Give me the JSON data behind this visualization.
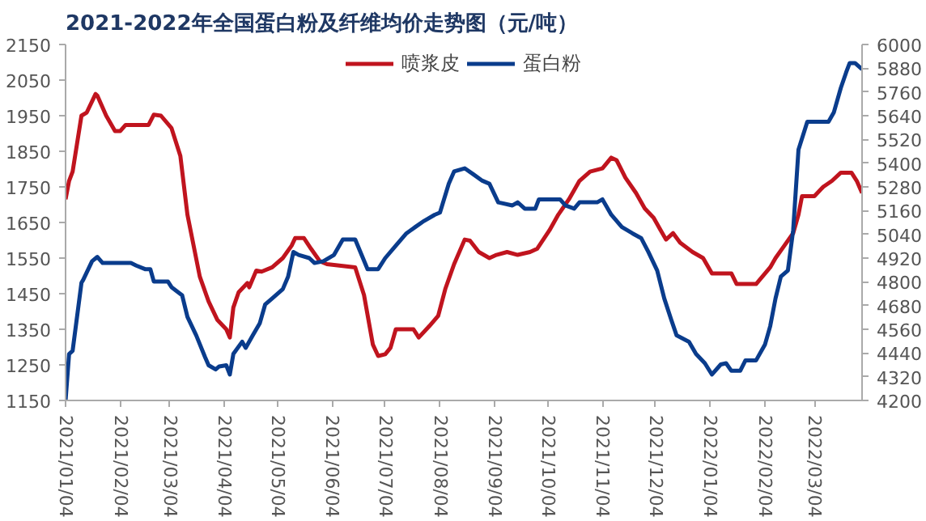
{
  "chart_data": {
    "type": "line",
    "title": "2021-2022年全国蛋白粉及纤维均价走势图（元/吨）",
    "xlim": [
      "2021-01-04",
      "2022-03-31"
    ],
    "xticks": [
      {
        "value": "2021-01-04",
        "label": "2021/01/04"
      },
      {
        "value": "2021-02-04",
        "label": "2021/02/04"
      },
      {
        "value": "2021-03-04",
        "label": "2021/03/04"
      },
      {
        "value": "2021-04-04",
        "label": "2021/04/04"
      },
      {
        "value": "2021-05-04",
        "label": "2021/05/04"
      },
      {
        "value": "2021-06-04",
        "label": "2021/06/04"
      },
      {
        "value": "2021-07-04",
        "label": "2021/07/04"
      },
      {
        "value": "2021-08-04",
        "label": "2021/08/04"
      },
      {
        "value": "2021-09-04",
        "label": "2021/09/04"
      },
      {
        "value": "2021-10-04",
        "label": "2021/10/04"
      },
      {
        "value": "2021-11-04",
        "label": "2021/11/04"
      },
      {
        "value": "2021-12-04",
        "label": "2021/12/04"
      },
      {
        "value": "2022-01-04",
        "label": "2022/01/04"
      },
      {
        "value": "2022-02-04",
        "label": "2022/02/04"
      },
      {
        "value": "2022-03-04",
        "label": "2022/03/04"
      }
    ],
    "ylim": [
      1150,
      2150
    ],
    "yticks": [
      1150,
      1250,
      1350,
      1450,
      1550,
      1650,
      1750,
      1850,
      1950,
      2050,
      2150
    ],
    "y2lim": [
      4200,
      6000
    ],
    "y2ticks": [
      4200,
      4320,
      4440,
      4560,
      4680,
      4800,
      4920,
      5040,
      5160,
      5280,
      5400,
      5520,
      5640,
      5760,
      5880,
      6000
    ],
    "grid": false,
    "legend": "top",
    "series": [
      {
        "name": "喷浆皮",
        "color": "#c0141e",
        "x": [
          "2021-01-04",
          "2021-01-06",
          "2021-01-08",
          "2021-01-13",
          "2021-01-16",
          "2021-01-21",
          "2021-01-22",
          "2021-01-27",
          "2021-02-01",
          "2021-02-04",
          "2021-02-07",
          "2021-02-20",
          "2021-02-23",
          "2021-02-27",
          "2021-03-05",
          "2021-03-10",
          "2021-03-14",
          "2021-03-21",
          "2021-03-26",
          "2021-03-31",
          "2021-04-05",
          "2021-04-07",
          "2021-04-09",
          "2021-04-12",
          "2021-04-17",
          "2021-04-18",
          "2021-04-22",
          "2021-04-25",
          "2021-05-01",
          "2021-05-07",
          "2021-05-12",
          "2021-05-14",
          "2021-05-19",
          "2021-05-23",
          "2021-05-28",
          "2021-06-01",
          "2021-06-17",
          "2021-06-22",
          "2021-06-27",
          "2021-06-30",
          "2021-07-04",
          "2021-07-07",
          "2021-07-10",
          "2021-07-20",
          "2021-07-23",
          "2021-07-29",
          "2021-08-03",
          "2021-08-07",
          "2021-08-12",
          "2021-08-18",
          "2021-08-21",
          "2021-08-26",
          "2021-09-01",
          "2021-09-05",
          "2021-09-11",
          "2021-09-17",
          "2021-09-24",
          "2021-09-28",
          "2021-10-05",
          "2021-10-10",
          "2021-10-16",
          "2021-10-22",
          "2021-10-28",
          "2021-11-04",
          "2021-11-09",
          "2021-11-12",
          "2021-11-17",
          "2021-11-23",
          "2021-11-28",
          "2021-12-03",
          "2021-12-07",
          "2021-12-10",
          "2021-12-14",
          "2021-12-18",
          "2021-12-25",
          "2021-12-31",
          "2022-01-05",
          "2022-01-16",
          "2022-01-19",
          "2022-01-30",
          "2022-02-07",
          "2022-02-10",
          "2022-02-15",
          "2022-02-20",
          "2022-02-23",
          "2022-02-25",
          "2022-03-04",
          "2022-03-09",
          "2022-03-14",
          "2022-03-19",
          "2022-03-25",
          "2022-03-28",
          "2022-03-31"
        ],
        "values": [
          1715,
          1767,
          1793,
          1950,
          1959,
          2011,
          2006,
          1950,
          1907,
          1907,
          1924,
          1924,
          1953,
          1950,
          1915,
          1837,
          1672,
          1498,
          1428,
          1376,
          1350,
          1327,
          1411,
          1454,
          1480,
          1468,
          1515,
          1512,
          1524,
          1550,
          1585,
          1606,
          1606,
          1576,
          1541,
          1533,
          1524,
          1446,
          1307,
          1275,
          1280,
          1298,
          1350,
          1350,
          1327,
          1359,
          1388,
          1463,
          1533,
          1602,
          1599,
          1567,
          1550,
          1559,
          1567,
          1559,
          1567,
          1576,
          1628,
          1672,
          1715,
          1767,
          1793,
          1802,
          1832,
          1825,
          1776,
          1733,
          1689,
          1663,
          1628,
          1602,
          1620,
          1593,
          1567,
          1550,
          1507,
          1507,
          1477,
          1477,
          1524,
          1550,
          1585,
          1620,
          1672,
          1724,
          1724,
          1750,
          1767,
          1790,
          1790,
          1767,
          1733
        ]
      },
      {
        "name": "蛋白粉",
        "color": "#0a3c8c",
        "axis": "y2",
        "x": [
          "2021-01-04",
          "2021-01-06",
          "2021-01-08",
          "2021-01-13",
          "2021-01-14",
          "2021-01-19",
          "2021-01-22",
          "2021-01-25",
          "2021-02-10",
          "2021-02-13",
          "2021-02-18",
          "2021-02-21",
          "2021-02-23",
          "2021-03-03",
          "2021-03-05",
          "2021-03-11",
          "2021-03-14",
          "2021-03-19",
          "2021-03-24",
          "2021-03-26",
          "2021-03-30",
          "2021-04-01",
          "2021-04-05",
          "2021-04-07",
          "2021-04-09",
          "2021-04-14",
          "2021-04-16",
          "2021-04-20",
          "2021-04-24",
          "2021-04-27",
          "2021-05-01",
          "2021-05-07",
          "2021-05-10",
          "2021-05-13",
          "2021-05-16",
          "2021-05-22",
          "2021-05-25",
          "2021-05-30",
          "2021-06-05",
          "2021-06-10",
          "2021-06-17",
          "2021-06-24",
          "2021-06-30",
          "2021-07-04",
          "2021-07-10",
          "2021-07-16",
          "2021-07-21",
          "2021-07-26",
          "2021-08-01",
          "2021-08-04",
          "2021-08-09",
          "2021-08-12",
          "2021-08-18",
          "2021-08-23",
          "2021-08-28",
          "2021-09-01",
          "2021-09-06",
          "2021-09-14",
          "2021-09-17",
          "2021-09-21",
          "2021-09-27",
          "2021-09-29",
          "2021-10-11",
          "2021-10-14",
          "2021-10-19",
          "2021-10-22",
          "2021-11-01",
          "2021-11-04",
          "2021-11-09",
          "2021-11-15",
          "2021-11-21",
          "2021-11-26",
          "2021-11-30",
          "2021-12-05",
          "2021-12-09",
          "2021-12-13",
          "2021-12-16",
          "2021-12-23",
          "2021-12-27",
          "2022-01-01",
          "2022-01-05",
          "2022-01-10",
          "2022-01-13",
          "2022-01-16",
          "2022-01-21",
          "2022-01-24",
          "2022-01-30",
          "2022-02-04",
          "2022-02-07",
          "2022-02-10",
          "2022-02-13",
          "2022-02-17",
          "2022-02-20",
          "2022-02-23",
          "2022-02-28",
          "2022-03-12",
          "2022-03-15",
          "2022-03-19",
          "2022-03-22",
          "2022-03-24",
          "2022-03-27",
          "2022-03-31"
        ],
        "values": [
          4200,
          4435,
          4451,
          4795,
          4810,
          4904,
          4926,
          4895,
          4895,
          4882,
          4864,
          4864,
          4801,
          4801,
          4773,
          4732,
          4623,
          4529,
          4419,
          4378,
          4357,
          4372,
          4378,
          4331,
          4435,
          4497,
          4466,
          4529,
          4591,
          4685,
          4716,
          4763,
          4826,
          4951,
          4936,
          4920,
          4895,
          4904,
          4936,
          5014,
          5014,
          4864,
          4864,
          4920,
          4983,
          5045,
          5077,
          5108,
          5139,
          5150,
          5296,
          5358,
          5374,
          5343,
          5311,
          5296,
          5202,
          5186,
          5202,
          5170,
          5170,
          5217,
          5217,
          5186,
          5170,
          5202,
          5202,
          5217,
          5139,
          5077,
          5045,
          5020,
          4951,
          4857,
          4716,
          4607,
          4529,
          4497,
          4435,
          4388,
          4331,
          4382,
          4388,
          4350,
          4350,
          4403,
          4403,
          4482,
          4576,
          4716,
          4826,
          4857,
          5061,
          5468,
          5609,
          5609,
          5656,
          5781,
          5859,
          5906,
          5906,
          5875
        ]
      }
    ]
  }
}
